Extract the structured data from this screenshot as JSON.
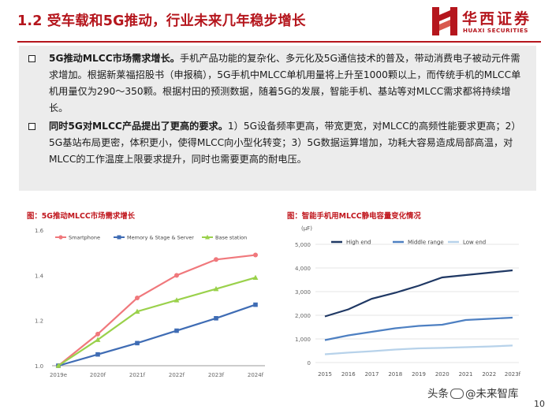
{
  "header": {
    "title": "1.2 受车载和5G推动，行业未来几年稳步增长",
    "logo_cn": "华西证券",
    "logo_en": "HUAXI SECURITIES",
    "brand_color": "#b5161d"
  },
  "bullets": [
    {
      "bold": "5G推动MLCC市场需求增长。",
      "text": "手机产品功能的复杂化、多元化及5G通信技术的普及，带动消费电子被动元件需求增加。根据新莱福招股书（申报稿），5G手机中MLCC单机用量将上升至1000颗以上，而传统手机的MLCC单机用量仅为290～350颗。根据村田的预测数据，随着5G的发展，智能手机、基站等对MLCC需求都将持续增长。"
    },
    {
      "bold": "同时5G对MLCC产品提出了更高的要求。",
      "text": "1）5G设备频率更高，带宽更宽，对MLCC的高频性能要求更高；2）5G基站布局更密，体积更小，使得MLCC向小型化转变；3）5G数据运算增加，功耗大容易造成局部高温，对MLCC的工作温度上限要求提升，同时也需要更高的耐电压。"
    }
  ],
  "captions": {
    "left": "图：5G推动MLCC市场需求增长",
    "right": "图：智能手机用MLCC静电容量变化情况"
  },
  "footer": {
    "watermark_prefix": "头条",
    "watermark_name": "@未来智库",
    "page_number": "10"
  },
  "chart_data": [
    {
      "type": "line",
      "title": "图：5G推动MLCC市场需求增长",
      "categories": [
        "2019e",
        "2020f",
        "2021f",
        "2022f",
        "2023f",
        "2024f"
      ],
      "ylim": [
        1.0,
        1.6
      ],
      "yticks": [
        "1.0",
        "1.2",
        "1.4",
        "1.6"
      ],
      "series": [
        {
          "name": "Smartphone",
          "color": "#f0787c",
          "marker": "circle",
          "values": [
            1.0,
            1.14,
            1.3,
            1.4,
            1.47,
            1.49
          ]
        },
        {
          "name": "Memory & Stage & Server",
          "color": "#3f6cb4",
          "marker": "square",
          "values": [
            1.0,
            1.05,
            1.1,
            1.155,
            1.21,
            1.27
          ]
        },
        {
          "name": "Base station",
          "color": "#9ad14b",
          "marker": "triangle",
          "values": [
            1.0,
            1.115,
            1.24,
            1.29,
            1.34,
            1.39
          ]
        }
      ]
    },
    {
      "type": "line",
      "title": "图：智能手机用MLCC静电容量变化情况",
      "ylabel": "(μF)",
      "x": [
        "2015",
        "2016",
        "2017",
        "2018",
        "2019",
        "2020",
        "2021",
        "2022",
        "2023f"
      ],
      "ylim": [
        0,
        5000
      ],
      "yticks": [
        "0",
        "1,000",
        "2,000",
        "3,000",
        "4,000",
        "5,000"
      ],
      "series": [
        {
          "name": "High end",
          "color": "#1f3864",
          "values": [
            1950,
            2250,
            2700,
            2950,
            3250,
            3600,
            3700,
            3800,
            3900
          ]
        },
        {
          "name": "Middle range",
          "color": "#4e80c2",
          "values": [
            950,
            1150,
            1300,
            1450,
            1550,
            1600,
            1800,
            1850,
            1900
          ]
        },
        {
          "name": "Low end",
          "color": "#b7d2ea",
          "values": [
            350,
            420,
            480,
            550,
            600,
            620,
            650,
            680,
            720
          ]
        }
      ]
    }
  ]
}
